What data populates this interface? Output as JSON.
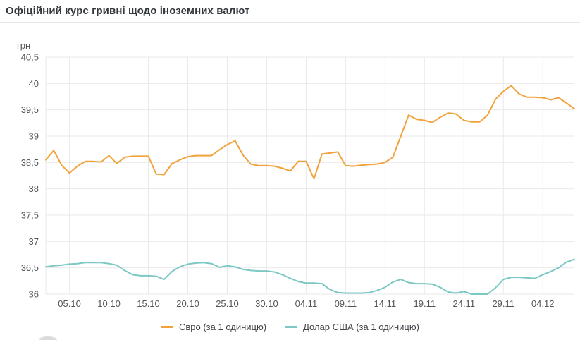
{
  "header": {
    "title": "Офіційний курс гривні щодо іноземних валют"
  },
  "colors": {
    "grid": "#e9eaec",
    "divider": "#e4e6e8",
    "tick_text": "#51565b",
    "title_text": "#33383d",
    "euro_line": "#f1a23a",
    "usd_line": "#7bc8c4"
  },
  "chart_data": {
    "type": "line",
    "title": "Офіційний курс гривні щодо іноземних валют",
    "xlabel": "",
    "ylabel": "грн",
    "unit_label": "грн",
    "grid": true,
    "legend_position": "bottom",
    "ylim": [
      36,
      40.5
    ],
    "y_tick_values": [
      40.5,
      40,
      39.5,
      39,
      38.5,
      38,
      37.5,
      37,
      36.5,
      36
    ],
    "y_tick_labels": [
      "40,5",
      "40",
      "39,5",
      "39",
      "38,5",
      "38",
      "37,5",
      "37",
      "36,5",
      "36"
    ],
    "x_ticks": [
      "05.10",
      "10.10",
      "15.10",
      "20.10",
      "25.10",
      "30.10",
      "04.11",
      "09.11",
      "14.11",
      "19.11",
      "24.11",
      "29.11",
      "04.12"
    ],
    "categories": [
      "02.10",
      "03.10",
      "04.10",
      "05.10",
      "06.10",
      "07.10",
      "08.10",
      "09.10",
      "10.10",
      "11.10",
      "12.10",
      "13.10",
      "14.10",
      "15.10",
      "16.10",
      "17.10",
      "18.10",
      "19.10",
      "20.10",
      "21.10",
      "22.10",
      "23.10",
      "24.10",
      "25.10",
      "26.10",
      "27.10",
      "28.10",
      "29.10",
      "30.10",
      "31.10",
      "01.11",
      "02.11",
      "03.11",
      "04.11",
      "05.11",
      "06.11",
      "07.11",
      "08.11",
      "09.11",
      "10.11",
      "11.11",
      "12.11",
      "13.11",
      "14.11",
      "15.11",
      "16.11",
      "17.11",
      "18.11",
      "19.11",
      "20.11",
      "21.11",
      "22.11",
      "23.11",
      "24.11",
      "25.11",
      "26.11",
      "27.11",
      "28.11",
      "29.11",
      "30.11",
      "01.12",
      "02.12",
      "03.12",
      "04.12",
      "05.12",
      "06.12",
      "07.12",
      "08.12"
    ],
    "series": [
      {
        "name": "Євро (за 1 одиницю)",
        "color": "#f1a23a",
        "values": [
          38.55,
          38.73,
          38.45,
          38.3,
          38.43,
          38.52,
          38.52,
          38.51,
          38.63,
          38.48,
          38.6,
          38.62,
          38.62,
          38.62,
          38.28,
          38.27,
          38.48,
          38.55,
          38.61,
          38.63,
          38.63,
          38.63,
          38.74,
          38.84,
          38.91,
          38.64,
          38.47,
          38.44,
          38.44,
          38.43,
          38.39,
          38.34,
          38.52,
          38.52,
          38.19,
          38.66,
          38.68,
          38.7,
          38.44,
          38.43,
          38.45,
          38.46,
          38.47,
          38.5,
          38.6,
          39.0,
          39.4,
          39.32,
          39.3,
          39.26,
          39.36,
          39.44,
          39.42,
          39.3,
          39.27,
          39.27,
          39.4,
          39.7,
          39.85,
          39.96,
          39.8,
          39.74,
          39.74,
          39.73,
          39.69,
          39.73,
          39.63,
          39.52
        ]
      },
      {
        "name": "Долар США (за 1 одиницю)",
        "color": "#7bc8c4",
        "values": [
          36.52,
          36.54,
          36.55,
          36.57,
          36.58,
          36.6,
          36.6,
          36.6,
          36.58,
          36.55,
          36.45,
          36.37,
          36.35,
          36.35,
          36.34,
          36.28,
          36.43,
          36.52,
          36.57,
          36.59,
          36.6,
          36.58,
          36.51,
          36.54,
          36.52,
          36.47,
          36.45,
          36.44,
          36.44,
          36.42,
          36.37,
          36.3,
          36.24,
          36.21,
          36.21,
          36.2,
          36.09,
          36.03,
          36.02,
          36.02,
          36.02,
          36.03,
          36.07,
          36.13,
          36.23,
          36.28,
          36.22,
          36.2,
          36.2,
          36.19,
          36.13,
          36.04,
          36.02,
          36.05,
          36.0,
          36.0,
          36.0,
          36.12,
          36.28,
          36.32,
          36.32,
          36.31,
          36.3,
          36.37,
          36.43,
          36.5,
          36.61,
          36.66
        ]
      }
    ]
  }
}
